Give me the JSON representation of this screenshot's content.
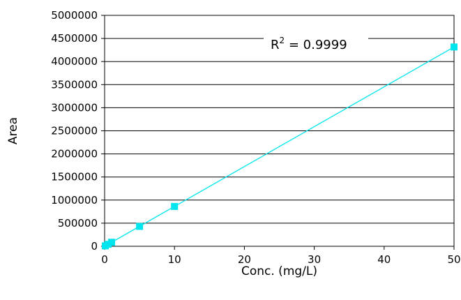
{
  "chart_data": {
    "type": "scatter",
    "xlabel": "Conc. (mg/L)",
    "ylabel": "Area",
    "xlim": [
      0,
      50
    ],
    "ylim": [
      0,
      5000000
    ],
    "x_ticks": [
      "0",
      "10",
      "20",
      "30",
      "40",
      "50"
    ],
    "y_ticks": [
      "0",
      "500000",
      "1000000",
      "1500000",
      "2000000",
      "2500000",
      "3000000",
      "3500000",
      "4000000",
      "4500000",
      "5000000"
    ],
    "grid": "horizontal",
    "series": [
      {
        "color": "#00e5ee",
        "marker": "square",
        "points": [
          {
            "x": 0.1,
            "y": 9000
          },
          {
            "x": 0.5,
            "y": 43000
          },
          {
            "x": 1,
            "y": 87000
          },
          {
            "x": 5,
            "y": 430000
          },
          {
            "x": 10,
            "y": 862000
          },
          {
            "x": 50,
            "y": 4315000
          }
        ]
      }
    ],
    "trendline": {
      "color": "#00e5ee",
      "from": {
        "x": 0,
        "y": 0
      },
      "to": {
        "x": 50,
        "y": 4315000
      }
    },
    "annotation": {
      "r2_prefix": "R",
      "r2_sup": "2",
      "r2_value": " = 0.9999"
    }
  }
}
